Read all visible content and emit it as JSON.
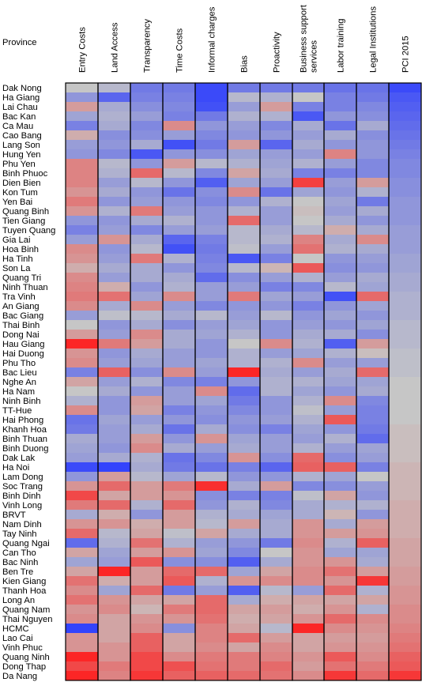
{
  "chart_data": {
    "type": "heatmap",
    "row_header": "Province",
    "columns": [
      "Entry Costs",
      "Land Access",
      "Transparency",
      "Time Costs",
      "Informal charges",
      "Bias",
      "Proactivity",
      "Business support services",
      "Labor training",
      "Legal Institutions",
      "PCI 2015"
    ],
    "column_label_lines": [
      [
        "Entry Costs"
      ],
      [
        "Land Access"
      ],
      [
        "Transparency"
      ],
      [
        "Time Costs"
      ],
      [
        "Informal charges"
      ],
      [
        "Bias"
      ],
      [
        "Proactivity"
      ],
      [
        "Business support",
        "services"
      ],
      [
        "Labor training"
      ],
      [
        "Legal Institutions"
      ],
      [
        "PCI 2015"
      ]
    ],
    "rows": [
      "Dak Nong",
      "Ha Giang",
      "Lai Chau",
      "Bac Kan",
      "Ca Mau",
      "Cao Bang",
      "Lang Son",
      "Hung Yen",
      "Phu Yen",
      "Binh Phuoc",
      "Dien Bien",
      "Kon Tum",
      "Yen Bai",
      "Quang Binh",
      "Tien Giang",
      "Tuyen Quang",
      "Gia Lai",
      "Hoa Binh",
      "Ha Tinh",
      "Son La",
      "Quang Tri",
      "Ninh Thuan",
      "Tra Vinh",
      "An Giang",
      "Bac Giang",
      "Thai Binh",
      "Dong Nai",
      "Hau Giang",
      "Hai Duong",
      "Phu Tho",
      "Bac Lieu",
      "Nghe An",
      "Ha Nam",
      "Ninh Binh",
      "TT-Hue",
      "Hai Phong",
      "Khanh Hoa",
      "Binh Thuan",
      "Binh Duong",
      "Dak Lak",
      "Ha Noi",
      "Lam Dong",
      "Soc Trang",
      "Binh Dinh",
      "Vinh Long",
      "BRVT",
      "Nam Dinh",
      "Tay Ninh",
      "Quang Ngai",
      "Can Tho",
      "Bac Ninh",
      "Ben Tre",
      "Kien Giang",
      "Thanh Hoa",
      "Long An",
      "Quang Nam",
      "Thai Nguyen",
      "HCMC",
      "Lao Cai",
      "Vinh Phuc",
      "Quang Ninh",
      "Dong Thap",
      "Da Nang"
    ],
    "value_range": [
      -1,
      1
    ],
    "colors": {
      "low": "#2b3cff",
      "mid": "#c6c6c6",
      "high": "#ff1e1e",
      "border": "#000000"
    },
    "values": [
      [
        0.0,
        -0.1,
        -0.55,
        -0.55,
        -0.9,
        -0.55,
        -0.55,
        -0.55,
        -0.6,
        -0.6,
        -0.9
      ],
      [
        -0.35,
        -0.7,
        -0.5,
        -0.5,
        -0.9,
        -0.1,
        -0.15,
        0.0,
        -0.5,
        -0.55,
        -0.8
      ],
      [
        0.25,
        -0.2,
        -0.4,
        -0.45,
        -0.85,
        -0.3,
        0.25,
        -0.5,
        -0.5,
        -0.45,
        -0.75
      ],
      [
        -0.25,
        -0.15,
        -0.3,
        -0.5,
        -0.55,
        -0.15,
        -0.15,
        -0.8,
        -0.35,
        -0.4,
        -0.7
      ],
      [
        -0.5,
        -0.2,
        -0.45,
        0.35,
        -0.35,
        -0.3,
        -0.45,
        -0.2,
        -0.6,
        -0.2,
        -0.65
      ],
      [
        0.15,
        -0.4,
        -0.4,
        -0.3,
        -0.45,
        -0.35,
        -0.35,
        -0.3,
        -0.2,
        -0.4,
        -0.6
      ],
      [
        -0.3,
        -0.35,
        -0.2,
        -0.85,
        -0.55,
        0.25,
        -0.7,
        -0.2,
        -0.35,
        -0.35,
        -0.55
      ],
      [
        -0.35,
        -0.45,
        -0.8,
        -0.35,
        -0.4,
        -0.25,
        -0.3,
        -0.3,
        0.4,
        -0.35,
        -0.5
      ],
      [
        0.4,
        -0.1,
        -0.35,
        0.25,
        -0.1,
        -0.15,
        -0.25,
        -0.15,
        -0.3,
        -0.45,
        -0.45
      ],
      [
        0.4,
        -0.15,
        0.55,
        -0.1,
        -0.45,
        0.2,
        -0.2,
        -0.5,
        -0.5,
        -0.45,
        -0.45
      ],
      [
        0.4,
        -0.3,
        -0.1,
        -0.35,
        -0.75,
        -0.25,
        -0.3,
        0.8,
        -0.3,
        0.25,
        -0.4
      ],
      [
        0.3,
        -0.2,
        -0.35,
        -0.6,
        -0.4,
        0.35,
        -0.6,
        -0.25,
        -0.35,
        -0.15,
        -0.4
      ],
      [
        0.45,
        -0.35,
        -0.3,
        -0.35,
        -0.45,
        -0.35,
        -0.15,
        0.0,
        -0.25,
        -0.55,
        -0.35
      ],
      [
        0.3,
        -0.15,
        0.45,
        -0.3,
        -0.35,
        -0.15,
        -0.3,
        0.05,
        -0.3,
        -0.2,
        -0.35
      ],
      [
        -0.35,
        -0.35,
        -0.2,
        -0.15,
        -0.35,
        0.55,
        -0.3,
        0.0,
        -0.2,
        -0.35,
        -0.35
      ],
      [
        -0.5,
        -0.3,
        -0.45,
        -0.3,
        -0.3,
        -0.1,
        -0.2,
        -0.1,
        0.15,
        -0.2,
        -0.3
      ],
      [
        -0.3,
        0.3,
        -0.2,
        -0.7,
        -0.5,
        -0.1,
        -0.15,
        0.4,
        -0.2,
        0.35,
        -0.3
      ],
      [
        0.35,
        -0.35,
        -0.1,
        -0.85,
        -0.55,
        -0.05,
        -0.3,
        0.5,
        -0.15,
        -0.2,
        -0.3
      ],
      [
        0.3,
        -0.3,
        0.45,
        -0.15,
        -0.5,
        -0.8,
        -0.5,
        0.0,
        -0.35,
        -0.3,
        -0.25
      ],
      [
        0.15,
        -0.2,
        -0.2,
        -0.35,
        -0.45,
        -0.1,
        0.1,
        0.65,
        -0.4,
        -0.35,
        -0.25
      ],
      [
        0.35,
        -0.3,
        -0.2,
        -0.2,
        -0.65,
        -0.4,
        -0.3,
        -0.15,
        -0.3,
        -0.2,
        -0.2
      ],
      [
        0.4,
        0.15,
        -0.35,
        -0.15,
        -0.3,
        -0.3,
        -0.5,
        -0.45,
        -0.1,
        -0.25,
        -0.2
      ],
      [
        0.45,
        0.5,
        -0.25,
        0.35,
        -0.3,
        0.45,
        -0.25,
        -0.3,
        -0.85,
        0.55,
        -0.15
      ],
      [
        0.35,
        -0.2,
        0.35,
        -0.3,
        -0.45,
        -0.35,
        -0.35,
        -0.5,
        -0.35,
        -0.25,
        -0.15
      ],
      [
        -0.3,
        -0.05,
        -0.1,
        -0.2,
        -0.1,
        -0.3,
        -0.1,
        -0.35,
        -0.25,
        -0.35,
        -0.15
      ],
      [
        0.0,
        -0.35,
        -0.2,
        -0.4,
        -0.3,
        -0.25,
        -0.35,
        -0.3,
        -0.35,
        -0.25,
        -0.1
      ],
      [
        0.25,
        -0.3,
        0.35,
        -0.2,
        -0.25,
        -0.15,
        -0.35,
        -0.2,
        -0.2,
        -0.4,
        -0.1
      ],
      [
        0.95,
        0.45,
        0.25,
        -0.2,
        -0.35,
        0.0,
        0.35,
        -0.15,
        -0.75,
        0.25,
        -0.1
      ],
      [
        0.3,
        -0.35,
        -0.2,
        -0.3,
        -0.35,
        -0.15,
        -0.3,
        -0.25,
        -0.15,
        0.05,
        -0.05
      ],
      [
        0.35,
        -0.3,
        -0.25,
        -0.3,
        -0.25,
        -0.15,
        -0.15,
        0.35,
        -0.3,
        -0.3,
        -0.05
      ],
      [
        -0.5,
        0.6,
        -0.4,
        0.35,
        -0.3,
        0.95,
        -0.2,
        -0.3,
        -0.2,
        0.55,
        -0.05
      ],
      [
        0.2,
        -0.3,
        -0.15,
        -0.45,
        -0.5,
        -0.35,
        -0.15,
        -0.15,
        -0.25,
        -0.25,
        0.0
      ],
      [
        0.0,
        -0.2,
        -0.35,
        -0.3,
        0.35,
        -0.65,
        -0.15,
        -0.25,
        -0.35,
        -0.2,
        0.0
      ],
      [
        -0.15,
        -0.35,
        0.25,
        -0.3,
        -0.25,
        -0.55,
        -0.35,
        -0.15,
        0.35,
        -0.45,
        0.0
      ],
      [
        0.35,
        -0.35,
        0.2,
        -0.5,
        -0.35,
        -0.45,
        -0.35,
        -0.05,
        -0.3,
        -0.5,
        0.0
      ],
      [
        -0.6,
        -0.25,
        -0.3,
        -0.35,
        -0.4,
        -0.35,
        -0.3,
        -0.15,
        0.65,
        -0.5,
        0.0
      ],
      [
        -0.55,
        -0.3,
        -0.2,
        -0.6,
        -0.2,
        -0.4,
        -0.5,
        -0.25,
        -0.35,
        -0.55,
        0.05
      ],
      [
        -0.2,
        -0.3,
        0.25,
        -0.35,
        0.3,
        -0.25,
        -0.3,
        -0.3,
        -0.15,
        -0.65,
        0.05
      ],
      [
        -0.25,
        -0.35,
        0.35,
        -0.2,
        -0.3,
        -0.2,
        -0.3,
        -0.15,
        -0.3,
        -0.25,
        0.05
      ],
      [
        -0.3,
        -0.2,
        -0.15,
        -0.6,
        -0.45,
        0.3,
        -0.4,
        0.55,
        -0.4,
        -0.3,
        0.05
      ],
      [
        -0.9,
        -0.95,
        -0.2,
        -0.55,
        -0.6,
        -0.5,
        -0.7,
        0.6,
        0.6,
        -0.5,
        0.1
      ],
      [
        -0.35,
        0.25,
        -0.1,
        -0.25,
        -0.1,
        -0.35,
        -0.35,
        -0.15,
        -0.25,
        0.0,
        0.1
      ],
      [
        0.3,
        0.55,
        0.25,
        0.45,
        0.9,
        -0.2,
        0.25,
        -0.45,
        -0.4,
        -0.3,
        0.1
      ],
      [
        0.75,
        0.2,
        0.25,
        0.3,
        -0.4,
        -0.5,
        -0.5,
        -0.05,
        0.2,
        -0.35,
        0.1
      ],
      [
        0.45,
        0.55,
        -0.15,
        0.55,
        -0.35,
        -0.15,
        -0.45,
        -0.2,
        -0.15,
        -0.15,
        0.15
      ],
      [
        -0.2,
        0.15,
        -0.35,
        0.25,
        -0.15,
        -0.2,
        -0.25,
        -0.2,
        0.1,
        -0.35,
        0.15
      ],
      [
        0.3,
        0.3,
        0.15,
        0.25,
        -0.1,
        0.25,
        -0.2,
        0.3,
        -0.2,
        0.25,
        0.15
      ],
      [
        0.55,
        -0.1,
        0.2,
        -0.05,
        0.2,
        -0.2,
        -0.2,
        0.3,
        0.25,
        0.3,
        0.15
      ],
      [
        -0.65,
        -0.15,
        0.5,
        -0.15,
        -0.3,
        -0.35,
        -0.55,
        0.35,
        -0.15,
        0.6,
        0.2
      ],
      [
        0.2,
        -0.25,
        0.25,
        0.3,
        -0.25,
        -0.45,
        0.0,
        0.3,
        -0.25,
        -0.25,
        0.2
      ],
      [
        -0.25,
        -0.3,
        0.65,
        -0.4,
        -0.4,
        -0.75,
        -0.2,
        0.3,
        0.3,
        -0.2,
        0.2
      ],
      [
        0.2,
        0.95,
        0.25,
        0.55,
        0.55,
        -0.25,
        0.2,
        0.35,
        0.5,
        0.25,
        0.25
      ],
      [
        0.5,
        0.15,
        0.25,
        0.65,
        -0.15,
        0.3,
        0.35,
        0.35,
        0.3,
        0.85,
        0.25
      ],
      [
        0.35,
        -0.25,
        0.55,
        -0.55,
        -0.3,
        -0.75,
        -0.1,
        -0.3,
        0.55,
        -0.15,
        0.3
      ],
      [
        0.5,
        0.3,
        0.2,
        0.2,
        0.55,
        -0.2,
        0.15,
        0.2,
        0.2,
        0.2,
        0.3
      ],
      [
        0.3,
        0.35,
        0.1,
        0.45,
        0.55,
        0.2,
        0.25,
        0.15,
        0.3,
        -0.15,
        0.35
      ],
      [
        0.35,
        0.2,
        0.3,
        0.3,
        0.5,
        0.15,
        0.2,
        0.3,
        0.55,
        0.35,
        0.35
      ],
      [
        -0.95,
        0.2,
        0.35,
        -0.4,
        0.4,
        0.2,
        -0.1,
        0.95,
        0.35,
        0.3,
        0.4
      ],
      [
        0.3,
        0.2,
        0.6,
        0.2,
        0.4,
        0.55,
        0.25,
        0.2,
        0.25,
        0.25,
        0.45
      ],
      [
        0.3,
        0.3,
        0.6,
        0.2,
        0.35,
        0.2,
        0.35,
        0.2,
        0.3,
        0.3,
        0.5
      ],
      [
        0.95,
        0.3,
        0.75,
        0.35,
        0.45,
        0.45,
        0.4,
        0.3,
        0.65,
        0.35,
        0.6
      ],
      [
        0.75,
        0.45,
        0.75,
        0.7,
        0.5,
        0.45,
        0.55,
        0.25,
        0.5,
        0.45,
        0.65
      ],
      [
        0.95,
        0.4,
        0.85,
        0.6,
        0.6,
        0.55,
        0.5,
        0.35,
        0.85,
        0.55,
        0.85
      ]
    ]
  }
}
